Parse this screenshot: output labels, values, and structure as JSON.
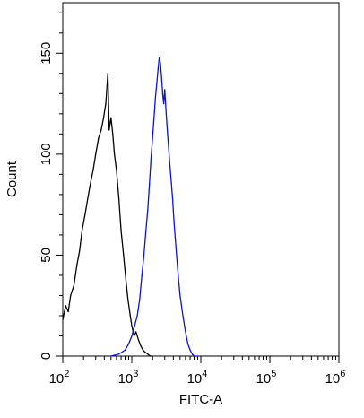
{
  "chart_data": {
    "type": "line",
    "title": "",
    "xlabel": "FITC-A",
    "ylabel": "Count",
    "x_scale": "log",
    "xlim": [
      100,
      1000000
    ],
    "ylim": [
      0,
      175
    ],
    "x_tick_values": [
      100,
      1000,
      10000,
      100000,
      1000000
    ],
    "x_ticks": [
      {
        "base": "10",
        "exp": "2"
      },
      {
        "base": "10",
        "exp": "3"
      },
      {
        "base": "10",
        "exp": "4"
      },
      {
        "base": "10",
        "exp": "5"
      },
      {
        "base": "10",
        "exp": "6"
      }
    ],
    "y_ticks": [
      0,
      50,
      100,
      150
    ],
    "grid": false,
    "legend": "none",
    "series": [
      {
        "color": "#000000",
        "x": [
          100,
          110,
          120,
          130,
          145,
          160,
          175,
          190,
          210,
          230,
          250,
          275,
          300,
          330,
          360,
          390,
          420,
          450,
          470,
          500,
          530,
          560,
          600,
          650,
          700,
          760,
          820,
          880,
          950,
          1000,
          1080,
          1150,
          1250,
          1350,
          1450,
          1550,
          1700,
          1850,
          2000
        ],
        "y": [
          18,
          25,
          22,
          30,
          35,
          45,
          52,
          62,
          70,
          78,
          85,
          92,
          100,
          108,
          112,
          118,
          125,
          140,
          112,
          118,
          110,
          100,
          92,
          78,
          62,
          50,
          38,
          28,
          20,
          15,
          10,
          12,
          8,
          5,
          3,
          2,
          1,
          0,
          0
        ]
      },
      {
        "color": "#0a14d2",
        "x": [
          500,
          650,
          800,
          900,
          1000,
          1100,
          1200,
          1300,
          1400,
          1500,
          1600,
          1700,
          1800,
          1900,
          2000,
          2100,
          2200,
          2300,
          2400,
          2500,
          2600,
          2700,
          2800,
          2900,
          3000,
          3150,
          3300,
          3500,
          3700,
          3900,
          4100,
          4400,
          4700,
          5000,
          5500,
          6000,
          6500,
          7000,
          7500,
          8000,
          9000
        ],
        "y": [
          0,
          1,
          3,
          6,
          10,
          15,
          20,
          28,
          40,
          50,
          62,
          72,
          85,
          98,
          108,
          118,
          128,
          135,
          142,
          148,
          145,
          138,
          130,
          125,
          132,
          120,
          110,
          98,
          88,
          78,
          66,
          52,
          40,
          30,
          20,
          12,
          6,
          3,
          1,
          0,
          0
        ]
      }
    ]
  }
}
